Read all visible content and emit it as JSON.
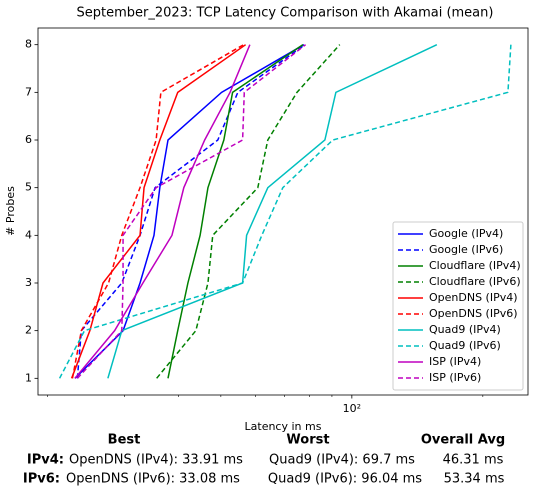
{
  "chart_data": {
    "type": "line",
    "title": "September_2023: TCP Latency Comparison with Akamai (mean)",
    "xlabel": "Latency in ms",
    "ylabel": "# Probes",
    "xscale": "log",
    "xlim": [
      19,
      254
    ],
    "xticks": [
      {
        "value": 100,
        "label": "10²"
      }
    ],
    "xminorticks": [
      20,
      30,
      40,
      50,
      60,
      70,
      80,
      90,
      200
    ],
    "ylim": [
      0.65,
      8.35
    ],
    "yticks": [
      1,
      2,
      3,
      4,
      5,
      6,
      7,
      8
    ],
    "legend": "lower right",
    "y": [
      1,
      2,
      3,
      4,
      5,
      6,
      7,
      8
    ],
    "series": [
      {
        "name": "Google (IPv4)",
        "color": "#0000ff",
        "linestyle": "solid",
        "x": [
          23.1,
          29.8,
          32.6,
          35.1,
          36.2,
          37.8,
          50.2,
          77.6
        ]
      },
      {
        "name": "Google (IPv6)",
        "color": "#0000ff",
        "linestyle": "dashed",
        "x": [
          23.4,
          23.9,
          29.6,
          32.6,
          35.3,
          49.2,
          54.7,
          78.0
        ]
      },
      {
        "name": "Cloudflare (IPv4)",
        "color": "#008000",
        "linestyle": "solid",
        "x": [
          37.8,
          39.8,
          42.0,
          44.8,
          46.7,
          50.8,
          53.2,
          77.2
        ]
      },
      {
        "name": "Cloudflare (IPv6)",
        "color": "#008000",
        "linestyle": "dashed",
        "x": [
          35.6,
          43.8,
          46.7,
          47.9,
          60.8,
          64.1,
          74.8,
          93.8
        ]
      },
      {
        "name": "OpenDNS (IPv4)",
        "color": "#ff0000",
        "linestyle": "solid",
        "x": [
          22.7,
          25.0,
          26.8,
          32.6,
          33.3,
          36.2,
          39.8,
          57.0
        ]
      },
      {
        "name": "OpenDNS (IPv6)",
        "color": "#ff0000",
        "linestyle": "dashed",
        "x": [
          22.8,
          23.9,
          27.6,
          29.6,
          32.6,
          35.5,
          36.4,
          56.4
        ]
      },
      {
        "name": "Quad9 (IPv4)",
        "color": "#00bfbf",
        "linestyle": "solid",
        "x": [
          27.5,
          29.6,
          56.1,
          57.3,
          64.1,
          86.7,
          91.9,
          156.8
        ]
      },
      {
        "name": "Quad9 (IPv6)",
        "color": "#00bfbf",
        "linestyle": "dashed",
        "x": [
          21.3,
          24.3,
          56.1,
          62.1,
          69.4,
          90.4,
          228.4,
          232.0
        ]
      },
      {
        "name": "ISP (IPv4)",
        "color": "#bf00bf",
        "linestyle": "solid",
        "x": [
          23.1,
          28.5,
          33.1,
          38.6,
          41.1,
          45.9,
          52.5,
          58.3
        ]
      },
      {
        "name": "ISP (IPv6)",
        "color": "#bf00bf",
        "linestyle": "dashed",
        "x": [
          23.4,
          29.6,
          29.8,
          29.8,
          35.5,
          56.1,
          56.6,
          78.3
        ]
      }
    ]
  },
  "table": {
    "headers": [
      "Best",
      "Worst",
      "Overall Avg"
    ],
    "rows": [
      [
        "IPv4:",
        "OpenDNS (IPv4): 33.91 ms",
        "Quad9 (IPv4): 69.7 ms",
        "46.31 ms"
      ],
      [
        "IPv6:",
        "OpenDNS (IPv6): 33.08 ms",
        "Quad9 (IPv6): 96.04 ms",
        "53.34 ms"
      ]
    ]
  }
}
